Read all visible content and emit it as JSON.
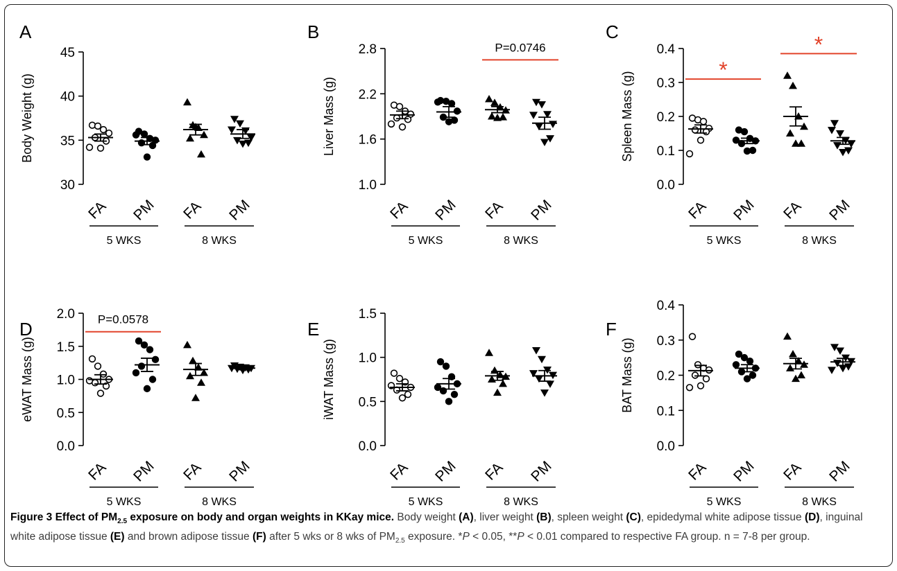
{
  "colors": {
    "axis": "#000000",
    "significance": "#e2432a",
    "caption_text": "#3c3c3c"
  },
  "chart_data": [
    {
      "type": "scatter",
      "panel": "A",
      "ylabel": "Body Weight (g)",
      "ylim": [
        30,
        45
      ],
      "yticks": [
        "30",
        "35",
        "40",
        "45"
      ],
      "categories": [
        "FA",
        "PM",
        "FA",
        "PM"
      ],
      "groups": [
        "5 WKS",
        "8 WKS"
      ],
      "series": [
        {
          "marker": "open-circle",
          "mean": 35.3,
          "sem": 0.4,
          "points": [
            36.7,
            36.6,
            36.2,
            35.8,
            35.3,
            34.9,
            34.1,
            34.2
          ]
        },
        {
          "marker": "filled-circle",
          "mean": 34.9,
          "sem": 0.4,
          "points": [
            36.0,
            35.7,
            35.2,
            35.0,
            34.7,
            34.4,
            33.1,
            35.6
          ]
        },
        {
          "marker": "triangle-up",
          "mean": 36.2,
          "sem": 0.6,
          "points": [
            39.3,
            36.7,
            36.4,
            35.6,
            35.2,
            33.4,
            36.5
          ]
        },
        {
          "marker": "triangle-down",
          "mean": 35.7,
          "sem": 0.5,
          "points": [
            37.4,
            36.9,
            36.1,
            35.3,
            35.0,
            34.7,
            34.6,
            36.2
          ]
        }
      ],
      "annotations": []
    },
    {
      "type": "scatter",
      "panel": "B",
      "ylabel": "Liver Mass (g)",
      "ylim": [
        1.0,
        2.8
      ],
      "yticks": [
        "1.0",
        "1.6",
        "2.2",
        "2.8"
      ],
      "categories": [
        "FA",
        "PM",
        "FA",
        "PM"
      ],
      "groups": [
        "5 WKS",
        "8 WKS"
      ],
      "series": [
        {
          "marker": "open-circle",
          "mean": 1.92,
          "sem": 0.05,
          "points": [
            2.05,
            2.03,
            1.97,
            1.93,
            1.88,
            1.86,
            1.76,
            1.8
          ]
        },
        {
          "marker": "filled-circle",
          "mean": 1.96,
          "sem": 0.07,
          "points": [
            2.11,
            2.1,
            2.07,
            1.97,
            1.89,
            1.85,
            1.83,
            2.09
          ]
        },
        {
          "marker": "triangle-up",
          "mean": 1.99,
          "sem": 0.04,
          "points": [
            2.13,
            2.08,
            2.02,
            1.98,
            1.9,
            1.89,
            1.88
          ]
        },
        {
          "marker": "triangle-down",
          "mean": 1.81,
          "sem": 0.08,
          "points": [
            2.09,
            2.06,
            1.93,
            1.8,
            1.77,
            1.61,
            1.56,
            1.92
          ]
        }
      ],
      "annotations": [
        {
          "text": "P=0.0746",
          "from": 2,
          "to": 3,
          "y": 2.65
        }
      ]
    },
    {
      "type": "scatter",
      "panel": "C",
      "ylabel": "Spleen Mass (g)",
      "ylim": [
        0.0,
        0.4
      ],
      "yticks": [
        "0.0",
        "0.1",
        "0.2",
        "0.3",
        "0.4"
      ],
      "categories": [
        "FA",
        "PM",
        "FA",
        "PM"
      ],
      "groups": [
        "5 WKS",
        "8 WKS"
      ],
      "series": [
        {
          "marker": "open-circle",
          "mean": 0.163,
          "sem": 0.012,
          "points": [
            0.195,
            0.19,
            0.185,
            0.165,
            0.16,
            0.155,
            0.13,
            0.09
          ]
        },
        {
          "marker": "filled-circle",
          "mean": 0.128,
          "sem": 0.008,
          "points": [
            0.16,
            0.155,
            0.135,
            0.128,
            0.12,
            0.1,
            0.098,
            0.13
          ]
        },
        {
          "marker": "triangle-up",
          "mean": 0.2,
          "sem": 0.028,
          "points": [
            0.32,
            0.29,
            0.2,
            0.17,
            0.15,
            0.12,
            0.12
          ]
        },
        {
          "marker": "triangle-down",
          "mean": 0.128,
          "sem": 0.01,
          "points": [
            0.18,
            0.15,
            0.13,
            0.12,
            0.115,
            0.1,
            0.095,
            0.16
          ]
        }
      ],
      "annotations": [
        {
          "text": "*",
          "from": 0,
          "to": 1,
          "y": 0.31
        },
        {
          "text": "*",
          "from": 2,
          "to": 3,
          "y": 0.385
        }
      ]
    },
    {
      "type": "scatter",
      "panel": "D",
      "ylabel": "eWAT Mass (g)",
      "ylim": [
        0.0,
        2.0
      ],
      "yticks": [
        "0.0",
        "0.5",
        "1.0",
        "1.5",
        "2.0"
      ],
      "categories": [
        "FA",
        "PM",
        "FA",
        "PM"
      ],
      "groups": [
        "5 WKS",
        "8 WKS"
      ],
      "series": [
        {
          "marker": "open-circle",
          "mean": 1.0,
          "sem": 0.07,
          "points": [
            1.31,
            1.2,
            1.08,
            1.0,
            0.95,
            0.9,
            0.79,
            0.98
          ]
        },
        {
          "marker": "filled-circle",
          "mean": 1.22,
          "sem": 0.1,
          "points": [
            1.58,
            1.52,
            1.45,
            1.3,
            1.2,
            1.0,
            0.86,
            1.1
          ]
        },
        {
          "marker": "triangle-up",
          "mean": 1.15,
          "sem": 0.09,
          "points": [
            1.52,
            1.28,
            1.18,
            1.1,
            1.05,
            0.95,
            0.72
          ]
        },
        {
          "marker": "triangle-down",
          "mean": 1.17,
          "sem": 0.02,
          "points": [
            1.21,
            1.19,
            1.18,
            1.17,
            1.16,
            1.15,
            1.14,
            1.17
          ]
        }
      ],
      "annotations": [
        {
          "text": "P=0.0578",
          "from": 0,
          "to": 1,
          "y": 1.72
        }
      ]
    },
    {
      "type": "scatter",
      "panel": "E",
      "ylabel": "iWAT Mass (g)",
      "ylim": [
        0.0,
        1.5
      ],
      "yticks": [
        "0.0",
        "0.5",
        "1.0",
        "1.5"
      ],
      "categories": [
        "FA",
        "PM",
        "FA",
        "PM"
      ],
      "groups": [
        "5 WKS",
        "8 WKS"
      ],
      "series": [
        {
          "marker": "open-circle",
          "mean": 0.66,
          "sem": 0.04,
          "points": [
            0.82,
            0.76,
            0.72,
            0.66,
            0.63,
            0.58,
            0.54,
            0.68
          ]
        },
        {
          "marker": "filled-circle",
          "mean": 0.7,
          "sem": 0.06,
          "points": [
            0.95,
            0.9,
            0.78,
            0.7,
            0.62,
            0.58,
            0.5,
            0.66
          ]
        },
        {
          "marker": "triangle-up",
          "mean": 0.79,
          "sem": 0.05,
          "points": [
            1.05,
            0.85,
            0.8,
            0.78,
            0.75,
            0.7,
            0.6
          ]
        },
        {
          "marker": "triangle-down",
          "mean": 0.79,
          "sem": 0.06,
          "points": [
            1.08,
            0.98,
            0.86,
            0.8,
            0.76,
            0.7,
            0.6,
            0.82
          ]
        }
      ],
      "annotations": []
    },
    {
      "type": "scatter",
      "panel": "F",
      "ylabel": "BAT Mass (g)",
      "ylim": [
        0.0,
        0.4
      ],
      "yticks": [
        "0.0",
        "0.1",
        "0.2",
        "0.3",
        "0.4"
      ],
      "categories": [
        "FA",
        "PM",
        "FA",
        "PM"
      ],
      "groups": [
        "5 WKS",
        "8 WKS"
      ],
      "series": [
        {
          "marker": "open-circle",
          "mean": 0.213,
          "sem": 0.015,
          "points": [
            0.31,
            0.23,
            0.22,
            0.215,
            0.2,
            0.19,
            0.17,
            0.165
          ]
        },
        {
          "marker": "filled-circle",
          "mean": 0.22,
          "sem": 0.01,
          "points": [
            0.26,
            0.25,
            0.24,
            0.22,
            0.21,
            0.2,
            0.19,
            0.23
          ]
        },
        {
          "marker": "triangle-up",
          "mean": 0.233,
          "sem": 0.015,
          "points": [
            0.31,
            0.26,
            0.24,
            0.23,
            0.22,
            0.2,
            0.19
          ]
        },
        {
          "marker": "triangle-down",
          "mean": 0.238,
          "sem": 0.01,
          "points": [
            0.28,
            0.27,
            0.25,
            0.24,
            0.235,
            0.225,
            0.22,
            0.215
          ]
        }
      ],
      "annotations": []
    }
  ],
  "caption": {
    "title": "Figure 3 Effect of PM",
    "title_sub": "2.5",
    "title_rest": " exposure on body and organ weights in KKay mice.",
    "segments": [
      {
        "t": " Body weight "
      },
      {
        "b": "(A)"
      },
      {
        "t": ", liver weight "
      },
      {
        "b": "(B)"
      },
      {
        "t": ", spleen weight "
      },
      {
        "b": "(C)"
      },
      {
        "t": ", epidedymal white adipose tissue "
      },
      {
        "b": "(D)"
      },
      {
        "t": ", inguinal white adipose tissue "
      },
      {
        "b": "(E)"
      },
      {
        "t": " and brown adipose tissue "
      },
      {
        "b": "(F)"
      },
      {
        "t": " after 5 wks or 8 wks of PM"
      },
      {
        "sub": "2.5"
      },
      {
        "t": " exposure. *"
      },
      {
        "i": "P"
      },
      {
        "t": " < 0.05, **"
      },
      {
        "i": "P"
      },
      {
        "t": " < 0.01 compared to respective FA group. n = 7-8 per group."
      }
    ]
  }
}
